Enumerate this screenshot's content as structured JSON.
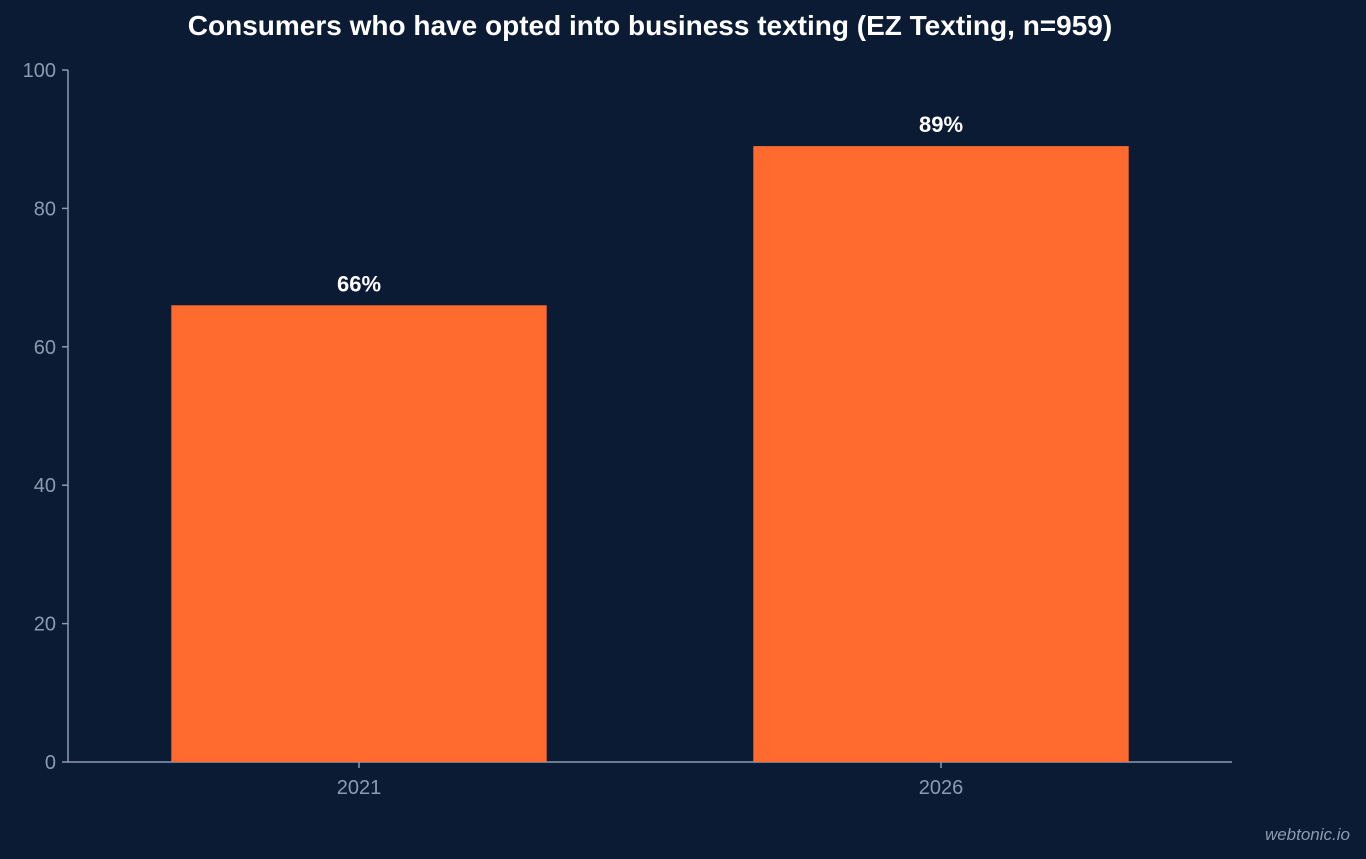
{
  "chart_data": {
    "type": "bar",
    "title": "Consumers who have opted into business texting (EZ Texting, n=959)",
    "categories": [
      "2021",
      "2026"
    ],
    "values": [
      66,
      89
    ],
    "data_labels": [
      "66%",
      "89%"
    ],
    "xlabel": "",
    "ylabel": "",
    "ylim": [
      0,
      100
    ],
    "yticks": [
      "0",
      "20",
      "40",
      "60",
      "80",
      "100"
    ],
    "grid": false,
    "colors": {
      "background": "#0b1b34",
      "bar": "#ff6b2e",
      "axis": "#8e9ab0",
      "text": "#ffffff"
    }
  },
  "watermark": "webtonic.io"
}
